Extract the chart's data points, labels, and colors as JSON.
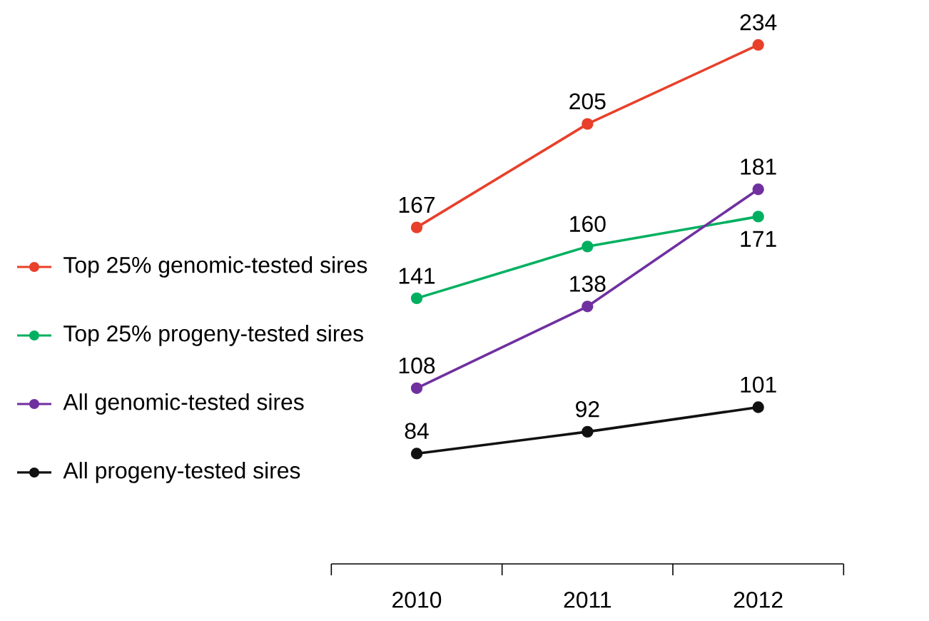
{
  "chart_data": {
    "type": "line",
    "categories": [
      "2010",
      "2011",
      "2012"
    ],
    "series": [
      {
        "name": "Top 25% genomic-tested sires",
        "color": "#e8402a",
        "values": [
          167,
          205,
          234
        ]
      },
      {
        "name": "Top 25% progeny-tested sires",
        "color": "#00b060",
        "values": [
          141,
          160,
          171
        ]
      },
      {
        "name": "All genomic-tested sires",
        "color": "#7030a0",
        "values": [
          108,
          138,
          181
        ]
      },
      {
        "name": "All progeny-tested sires",
        "color": "#111111",
        "values": [
          84,
          92,
          101
        ]
      }
    ],
    "data_labels": true,
    "marker": "circle",
    "line_style": "solid",
    "legend": "left",
    "grid": false
  }
}
